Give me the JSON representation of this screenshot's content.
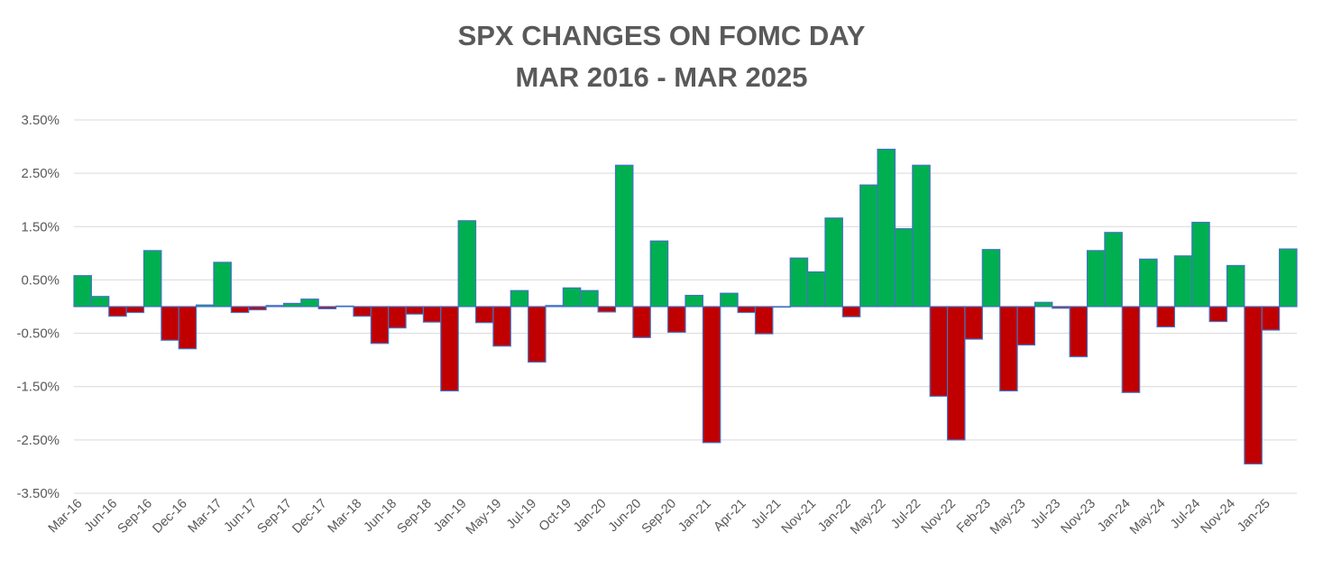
{
  "chart_data": {
    "type": "bar",
    "title": "SPX CHANGES ON FOMC DAY",
    "subtitle": "MAR 2016 - MAR 2025",
    "xlabel": "",
    "ylabel": "",
    "ylim": [
      -3.5,
      3.5
    ],
    "y_ticks": [
      "3.50%",
      "2.50%",
      "1.50%",
      "0.50%",
      "-0.50%",
      "-1.50%",
      "-2.50%",
      "-3.50%"
    ],
    "grid": true,
    "legend": "none",
    "colors": {
      "positive": "#00B050",
      "negative": "#C00000",
      "outline": "#4472C4",
      "grid": "#D9D9D9",
      "text": "#595959"
    },
    "x_tick_labels": [
      "Mar-16",
      "Jun-16",
      "Sep-16",
      "Dec-16",
      "Mar-17",
      "Jun-17",
      "Sep-17",
      "Dec-17",
      "Mar-18",
      "Jun-18",
      "Sep-18",
      "Jan-19",
      "May-19",
      "Jul-19",
      "Oct-19",
      "Jan-20",
      "Jun-20",
      "Sep-20",
      "Jan-21",
      "Apr-21",
      "Jul-21",
      "Nov-21",
      "Jan-22",
      "May-22",
      "Jul-22",
      "Nov-22",
      "Feb-23",
      "May-23",
      "Jul-23",
      "Nov-23",
      "Jan-24",
      "May-24",
      "Jul-24",
      "Nov-24",
      "Jan-25"
    ],
    "x_tick_every": 2,
    "values": [
      0.58,
      0.19,
      -0.18,
      -0.11,
      1.05,
      -0.63,
      -0.79,
      0.03,
      0.83,
      -0.11,
      -0.06,
      0.02,
      0.06,
      0.14,
      -0.04,
      0.01,
      -0.18,
      -0.69,
      -0.4,
      -0.14,
      -0.29,
      -1.58,
      1.61,
      -0.3,
      -0.74,
      0.3,
      -1.04,
      0.02,
      0.35,
      0.3,
      -0.1,
      2.65,
      -0.58,
      1.23,
      -0.48,
      0.21,
      -2.55,
      0.25,
      -0.11,
      -0.51,
      -0.01,
      0.91,
      0.65,
      1.66,
      -0.19,
      2.28,
      2.95,
      1.46,
      2.65,
      -1.68,
      -2.5,
      -0.61,
      1.07,
      -1.58,
      -0.72,
      0.08,
      -0.03,
      -0.94,
      1.05,
      1.39,
      -1.61,
      0.89,
      -0.38,
      0.95,
      1.58,
      -0.28,
      0.77,
      -2.95,
      -0.44,
      1.08
    ]
  }
}
